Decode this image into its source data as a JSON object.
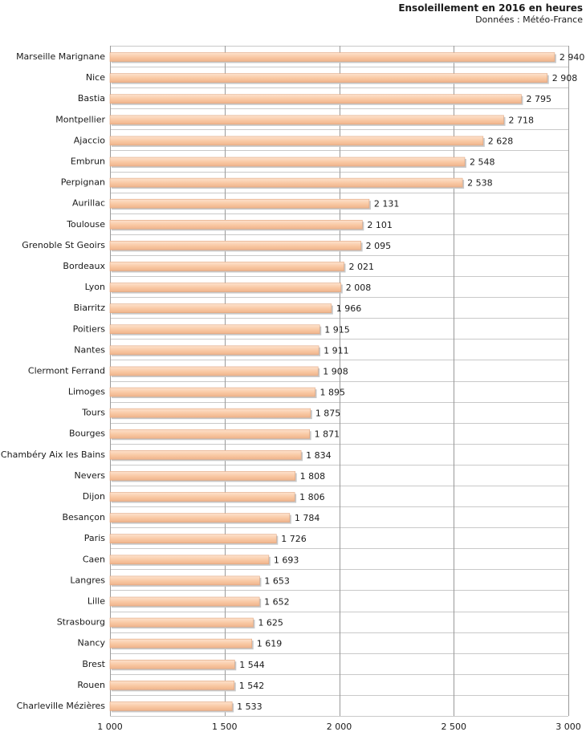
{
  "header": {
    "title": "Ensoleillement en 2016 en heures",
    "subtitle": "Données : Météo-France"
  },
  "chart_data": {
    "type": "bar",
    "orientation": "horizontal",
    "categories": [
      "Marseille Marignane",
      "Nice",
      "Bastia",
      "Montpellier",
      "Ajaccio",
      "Embrun",
      "Perpignan",
      "Aurillac",
      "Toulouse",
      "Grenoble St Geoirs",
      "Bordeaux",
      "Lyon",
      "Biarritz",
      "Poitiers",
      "Nantes",
      "Clermont Ferrand",
      "Limoges",
      "Tours",
      "Bourges",
      "Chambéry Aix les Bains",
      "Nevers",
      "Dijon",
      "Besançon",
      "Paris",
      "Caen",
      "Langres",
      "Lille",
      "Strasbourg",
      "Nancy",
      "Brest",
      "Rouen",
      "Charleville Mézières"
    ],
    "values": [
      2940,
      2908,
      2795,
      2718,
      2628,
      2548,
      2538,
      2131,
      2101,
      2095,
      2021,
      2008,
      1966,
      1915,
      1911,
      1908,
      1895,
      1875,
      1871,
      1834,
      1808,
      1806,
      1784,
      1726,
      1693,
      1653,
      1652,
      1625,
      1619,
      1544,
      1542,
      1533
    ],
    "value_labels": [
      "2 940",
      "2 908",
      "2 795",
      "2 718",
      "2 628",
      "2 548",
      "2 538",
      "2 131",
      "2 101",
      "2 095",
      "2 021",
      "2 008",
      "1 966",
      "1 915",
      "1 911",
      "1 908",
      "1 895",
      "1 875",
      "1 871",
      "1 834",
      "1 808",
      "1 806",
      "1 784",
      "1 726",
      "1 693",
      "1 653",
      "1 652",
      "1 625",
      "1 619",
      "1 544",
      "1 542",
      "1 533"
    ],
    "xlim": [
      1000,
      3000
    ],
    "x_ticks": [
      1000,
      1500,
      2000,
      2500,
      3000
    ],
    "x_tick_labels": [
      "1 000",
      "1 500",
      "2 000",
      "2 500",
      "3 000"
    ],
    "grid": true,
    "bar_color": "#f9c8a3",
    "bar_edge_color": "#e0a47e"
  }
}
